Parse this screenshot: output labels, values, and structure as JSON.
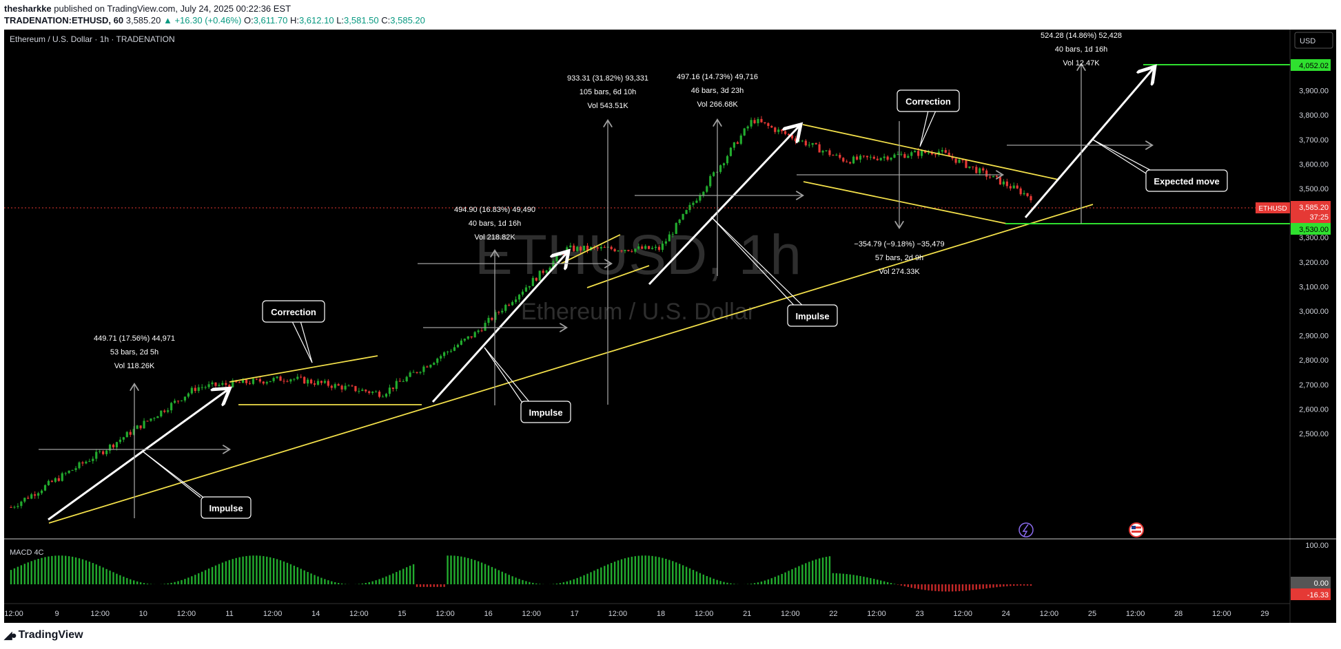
{
  "header": {
    "author": "thesharkke",
    "published_text": "published on TradingView.com, July 24, 2025 00:22:36 EST",
    "symbol": "TRADENATION:ETHUSD, 60",
    "last": "3,585.20",
    "change": "+16.30 (+0.46%)",
    "o_label": "O:",
    "o_val": "3,611.70",
    "h_label": "H:",
    "h_val": "3,612.10",
    "l_label": "L:",
    "l_val": "3,581.50",
    "c_label": "C:",
    "c_val": "3,585.20"
  },
  "chart_title": "Ethereum / U.S. Dollar · 1h · TRADENATION",
  "watermark": {
    "big": "ETHUSD, 1h",
    "small": "Ethereum / U.S. Dollar"
  },
  "currency": "USD",
  "price_axis": [
    "4,000.00",
    "3,900.00",
    "3,800.00",
    "3,700.00",
    "3,600.00",
    "3,500.00",
    "3,400.00",
    "3,300.00",
    "3,200.00",
    "3,100.00",
    "3,000.00",
    "2,900.00",
    "2,800.00",
    "2,700.00",
    "2,600.00",
    "2,500.00"
  ],
  "price_tags": {
    "target": "4,052.02",
    "symbol": "ETHUSD",
    "last": "3,585.20",
    "countdown": "37:25",
    "support": "3,530.00"
  },
  "time_axis": [
    "12:00",
    "9",
    "12:00",
    "10",
    "12:00",
    "11",
    "12:00",
    "14",
    "12:00",
    "15",
    "12:00",
    "16",
    "12:00",
    "17",
    "12:00",
    "18",
    "12:00",
    "21",
    "12:00",
    "22",
    "12:00",
    "23",
    "12:00",
    "24",
    "12:00",
    "25",
    "12:00",
    "28",
    "12:00",
    "29"
  ],
  "macd": {
    "title": "MACD 4C",
    "axis_top": "100.00",
    "zero": "0.00",
    "value": "-16.33"
  },
  "labels": {
    "impulse": "Impulse",
    "correction": "Correction",
    "expected": "Expected move"
  },
  "measures": [
    {
      "line1": "449.71 (17.56%) 44,971",
      "line2": "53 bars, 2d 5h",
      "line3": "Vol 118.26K"
    },
    {
      "line1": "494.90 (16.83%) 49,490",
      "line2": "40 bars, 1d 16h",
      "line3": "Vol 218.82K"
    },
    {
      "line1": "933.31 (31.82%) 93,331",
      "line2": "105 bars, 6d 10h",
      "line3": "Vol 543.51K"
    },
    {
      "line1": "497.16 (14.73%) 49,716",
      "line2": "46 bars, 3d 23h",
      "line3": "Vol 266.68K"
    },
    {
      "line1": "−354.79 (−9.18%) −35,479",
      "line2": "57 bars, 2d 9h",
      "line3": "Vol 274.33K"
    },
    {
      "line1": "524.28 (14.86%) 52,428",
      "line2": "40 bars, 1d 16h",
      "line3": "Vol 12.47K"
    }
  ],
  "footer": {
    "brand": "TradingView"
  },
  "colors": {
    "bg": "#000000",
    "up": "#22ab2e",
    "down": "#e53935",
    "trend": "#f3e04a",
    "annotation": "#ffffff",
    "green_line": "#2fe02f"
  },
  "chart_data": {
    "type": "line",
    "title": "Ethereum / U.S. Dollar · 1h · TRADENATION",
    "x": [
      "9",
      "10",
      "11",
      "14",
      "15",
      "16",
      "17",
      "18",
      "21",
      "22",
      "23",
      "24"
    ],
    "series": [
      {
        "values": [
          2600,
          2780,
          2980,
          3010,
          2960,
          3150,
          3420,
          3420,
          3830,
          3700,
          3730,
          3585
        ]
      }
    ],
    "ylim": [
      2500,
      4050
    ],
    "last_price": 3585.2,
    "support": 3530.0,
    "target": 4052.02
  }
}
